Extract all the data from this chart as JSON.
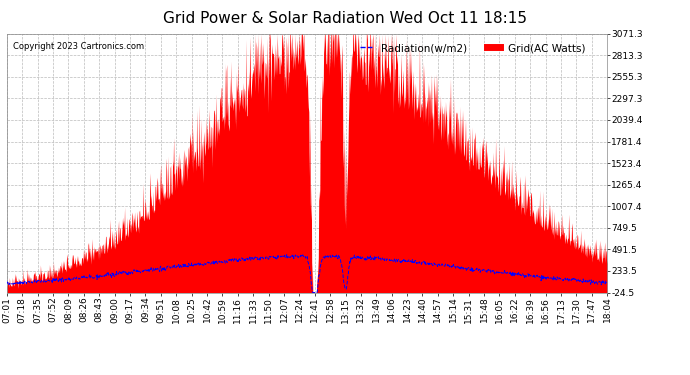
{
  "title": "Grid Power & Solar Radiation Wed Oct 11 18:15",
  "copyright": "Copyright 2023 Cartronics.com",
  "legend_radiation": "Radiation(w/m2)",
  "legend_grid": "Grid(AC Watts)",
  "y_min": -24.5,
  "y_max": 3071.3,
  "yticks": [
    3071.3,
    2813.3,
    2555.3,
    2297.3,
    2039.4,
    1781.4,
    1523.4,
    1265.4,
    1007.4,
    749.5,
    491.5,
    233.5,
    -24.5
  ],
  "x_labels": [
    "07:01",
    "07:18",
    "07:35",
    "07:52",
    "08:09",
    "08:26",
    "08:43",
    "09:00",
    "09:17",
    "09:34",
    "09:51",
    "10:08",
    "10:25",
    "10:42",
    "10:59",
    "11:16",
    "11:33",
    "11:50",
    "12:07",
    "12:24",
    "12:41",
    "12:58",
    "13:15",
    "13:32",
    "13:49",
    "14:06",
    "14:23",
    "14:40",
    "14:57",
    "15:14",
    "15:31",
    "15:48",
    "16:05",
    "16:22",
    "16:39",
    "16:56",
    "17:13",
    "17:30",
    "17:47",
    "18:04"
  ],
  "bg_color": "#ffffff",
  "grid_color": "#bbbbbb",
  "fill_color": "#ff0000",
  "line_color_blue": "#0000ff",
  "title_fontsize": 11,
  "label_fontsize": 6.5,
  "copyright_fontsize": 6.0,
  "legend_fontsize": 7.5,
  "legend_color_radiation": "#0000ff",
  "legend_color_grid": "#ff0000"
}
